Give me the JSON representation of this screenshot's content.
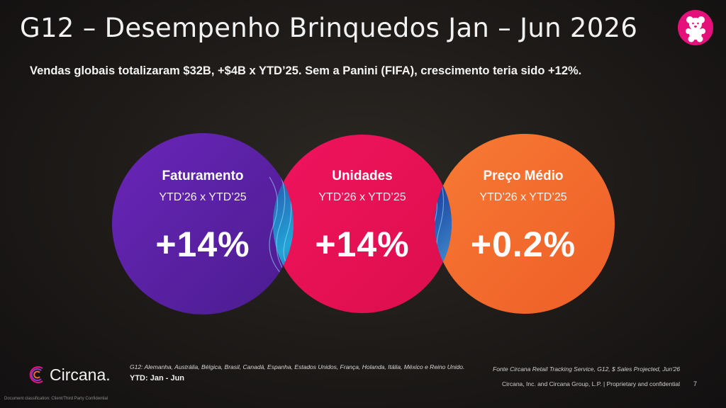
{
  "slide": {
    "title": "G12 – Desempenho Brinquedos Jan – Jun 2026",
    "subtitle": "Vendas globais totalizaram $32B, +$4B x YTD’25. Sem a Panini (FIFA), crescimento teria sido +12%.",
    "logo_icon": "teddy-bear-icon",
    "colors": {
      "faturamento": "#5a1fa6",
      "unidades": "#ea1156",
      "preco": "#f36b2c",
      "logo_bg": "#e5117a"
    }
  },
  "metrics": [
    {
      "label": "Faturamento",
      "period": "YTD’26 x YTD’25",
      "value": "+14%"
    },
    {
      "label": "Unidades",
      "period": "YTD’26 x YTD’25",
      "value": "+14%"
    },
    {
      "label": "Preço Médio",
      "period": "YTD’26 x YTD’25",
      "value": "+0.2%"
    }
  ],
  "footer": {
    "brand": "Circana.",
    "countries_note": "G12: Alemanha, Austrália, Bélgica, Brasil, Canadá, Espanha, Estados Unidos, França, Holanda, Itália, México e Reino Unido.",
    "ytd_note": "YTD: Jan - Jun",
    "source": "Fonte Circana Retail Tracking Service, G12, $ Sales Projected, Jun'26",
    "legal": "Circana, Inc. and Circana Group, L.P. | Proprietary and confidential",
    "page": "7",
    "confidential": "Document classification: Client/Third Party Confidential"
  }
}
